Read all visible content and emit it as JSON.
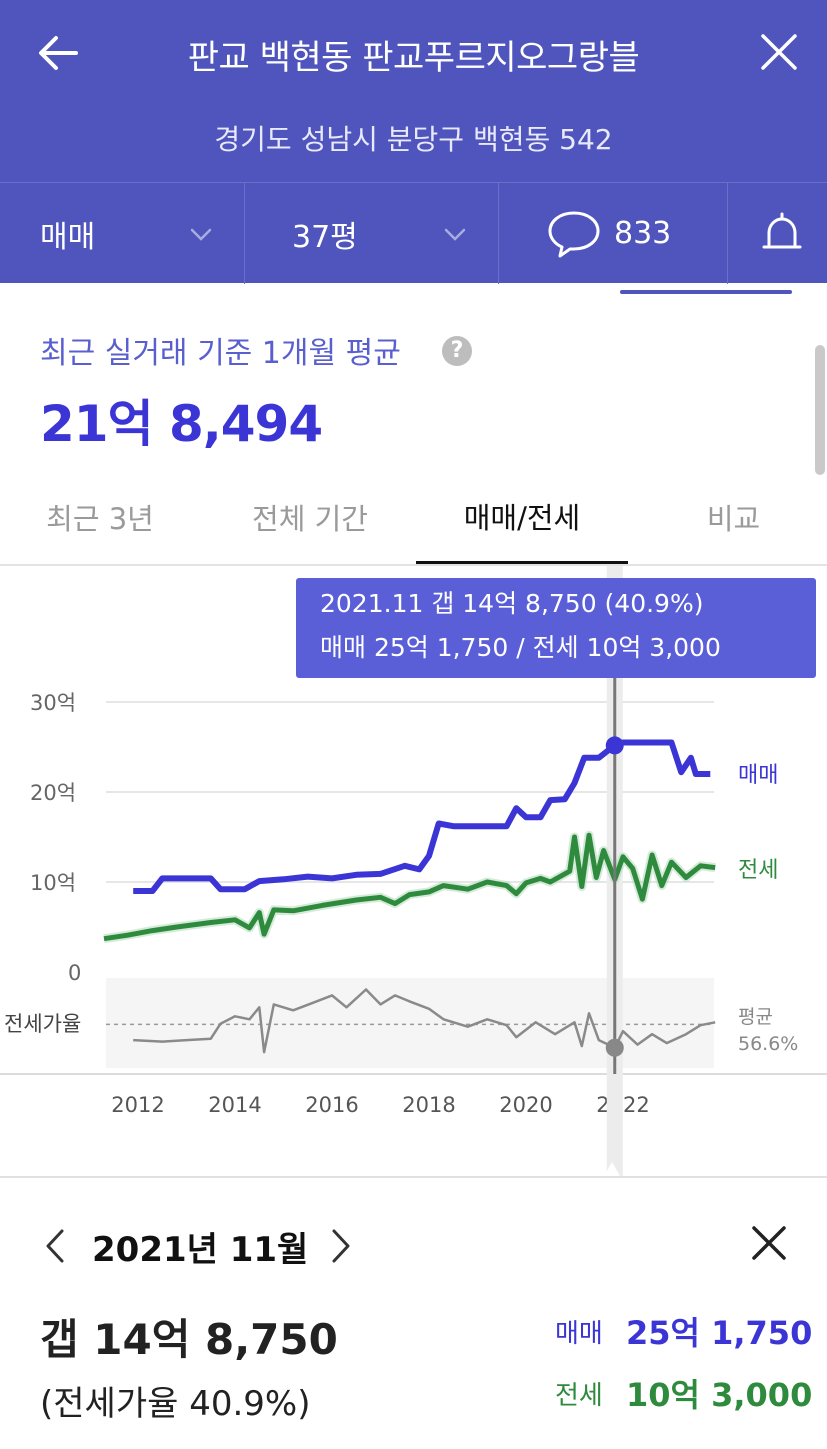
{
  "header": {
    "title": "판교 백현동 판교푸르지오그랑블",
    "address": "경기도 성남시 분당구 백현동 542"
  },
  "filters": {
    "deal_type": "매매",
    "size": "37평",
    "comments": "833"
  },
  "summary": {
    "label": "최근 실거래 기준 1개월 평균",
    "help": "?",
    "price": "21억 8,494"
  },
  "tabs": [
    {
      "label": "최근 3년",
      "active": false
    },
    {
      "label": "전체 기간",
      "active": false
    },
    {
      "label": "매매/전세",
      "active": true
    },
    {
      "label": "비교",
      "active": false
    }
  ],
  "tooltip": {
    "line1": "2021.11  갭 14억 8,750 (40.9%)",
    "line2": "매매 25억 1,750 / 전세 10억 3,000"
  },
  "colors": {
    "brand": "#4f55bd",
    "sale": "#3b35d6",
    "jeonse": "#2e8b3e",
    "ratio": "#8a8a8a"
  },
  "chart_data": {
    "type": "line",
    "x_ticks": [
      "2012",
      "2014",
      "2016",
      "2018",
      "2020",
      "2022"
    ],
    "y_ticks": [
      {
        "v": 30,
        "label": "30억"
      },
      {
        "v": 20,
        "label": "20억"
      },
      {
        "v": 10,
        "label": "10억"
      },
      {
        "v": 0,
        "label": "0"
      }
    ],
    "ylim": [
      0,
      30
    ],
    "grid": true,
    "series": [
      {
        "name": "매매",
        "unit": "억",
        "points": [
          [
            2011.9,
            9.0
          ],
          [
            2012.3,
            9.0
          ],
          [
            2012.5,
            10.4
          ],
          [
            2013.5,
            10.4
          ],
          [
            2013.7,
            9.2
          ],
          [
            2014.2,
            9.2
          ],
          [
            2014.5,
            10.1
          ],
          [
            2015.0,
            10.3
          ],
          [
            2015.5,
            10.6
          ],
          [
            2016.0,
            10.4
          ],
          [
            2016.5,
            10.8
          ],
          [
            2017.0,
            10.9
          ],
          [
            2017.5,
            11.8
          ],
          [
            2017.8,
            11.4
          ],
          [
            2018.0,
            12.9
          ],
          [
            2018.2,
            16.5
          ],
          [
            2018.5,
            16.2
          ],
          [
            2019.0,
            16.2
          ],
          [
            2019.6,
            16.2
          ],
          [
            2019.8,
            18.2
          ],
          [
            2020.0,
            17.2
          ],
          [
            2020.3,
            17.2
          ],
          [
            2020.5,
            19.1
          ],
          [
            2020.8,
            19.2
          ],
          [
            2021.0,
            21.0
          ],
          [
            2021.2,
            23.8
          ],
          [
            2021.5,
            23.8
          ],
          [
            2021.83,
            25.2
          ],
          [
            2022.0,
            25.5
          ],
          [
            2022.5,
            25.5
          ],
          [
            2023.0,
            25.5
          ],
          [
            2023.2,
            22.2
          ],
          [
            2023.4,
            23.8
          ],
          [
            2023.5,
            22.0
          ],
          [
            2023.8,
            22.0
          ]
        ]
      },
      {
        "name": "전세",
        "unit": "억",
        "points": [
          [
            2011.3,
            3.7
          ],
          [
            2011.8,
            4.1
          ],
          [
            2012.3,
            4.6
          ],
          [
            2012.8,
            5.0
          ],
          [
            2013.5,
            5.5
          ],
          [
            2014.0,
            5.8
          ],
          [
            2014.3,
            4.9
          ],
          [
            2014.5,
            6.6
          ],
          [
            2014.6,
            4.2
          ],
          [
            2014.8,
            6.9
          ],
          [
            2015.2,
            6.8
          ],
          [
            2015.8,
            7.4
          ],
          [
            2016.5,
            8.0
          ],
          [
            2017.0,
            8.3
          ],
          [
            2017.3,
            7.6
          ],
          [
            2017.6,
            8.6
          ],
          [
            2018.0,
            8.9
          ],
          [
            2018.3,
            9.6
          ],
          [
            2018.8,
            9.2
          ],
          [
            2019.2,
            10.0
          ],
          [
            2019.6,
            9.6
          ],
          [
            2019.8,
            8.7
          ],
          [
            2020.0,
            9.9
          ],
          [
            2020.3,
            10.4
          ],
          [
            2020.5,
            10.0
          ],
          [
            2020.9,
            11.2
          ],
          [
            2021.0,
            15.0
          ],
          [
            2021.15,
            9.5
          ],
          [
            2021.3,
            15.2
          ],
          [
            2021.45,
            10.5
          ],
          [
            2021.6,
            13.5
          ],
          [
            2021.83,
            10.3
          ],
          [
            2022.0,
            12.8
          ],
          [
            2022.2,
            11.5
          ],
          [
            2022.4,
            8.1
          ],
          [
            2022.6,
            13.0
          ],
          [
            2022.8,
            9.6
          ],
          [
            2023.0,
            12.2
          ],
          [
            2023.3,
            10.5
          ],
          [
            2023.6,
            11.8
          ],
          [
            2023.9,
            11.6
          ]
        ]
      },
      {
        "name": "전세가율",
        "unit": "%",
        "points": [
          [
            2011.9,
            46
          ],
          [
            2012.5,
            45
          ],
          [
            2013.0,
            46
          ],
          [
            2013.5,
            47
          ],
          [
            2013.7,
            57
          ],
          [
            2014.0,
            62
          ],
          [
            2014.3,
            60
          ],
          [
            2014.5,
            68
          ],
          [
            2014.6,
            38
          ],
          [
            2014.8,
            70
          ],
          [
            2015.2,
            66
          ],
          [
            2015.6,
            71
          ],
          [
            2016.0,
            76
          ],
          [
            2016.3,
            68
          ],
          [
            2016.7,
            80
          ],
          [
            2017.0,
            70
          ],
          [
            2017.3,
            76
          ],
          [
            2017.6,
            72
          ],
          [
            2018.0,
            67
          ],
          [
            2018.3,
            60
          ],
          [
            2018.8,
            55
          ],
          [
            2019.2,
            60
          ],
          [
            2019.6,
            56
          ],
          [
            2019.8,
            48
          ],
          [
            2020.2,
            58
          ],
          [
            2020.6,
            50
          ],
          [
            2021.0,
            58
          ],
          [
            2021.15,
            42
          ],
          [
            2021.3,
            64
          ],
          [
            2021.5,
            46
          ],
          [
            2021.83,
            40.9
          ],
          [
            2022.0,
            52
          ],
          [
            2022.3,
            43
          ],
          [
            2022.6,
            50
          ],
          [
            2022.9,
            44
          ],
          [
            2023.3,
            50
          ],
          [
            2023.6,
            56
          ],
          [
            2023.9,
            58
          ]
        ]
      }
    ],
    "selected": {
      "x": 2021.83,
      "sale": 25.175,
      "jeonse": 10.3,
      "ratio_pct": 40.9
    },
    "legend": {
      "sale": "매매",
      "jeonse": "전세",
      "ratio": "전세가율"
    },
    "ratio_avg_label_1": "평균",
    "ratio_avg_label_2": "56.6%",
    "ratio_avg": 56.6
  },
  "detail": {
    "month": "2021년 11월",
    "gap": "갭 14억 8,750",
    "ratio": "(전세가율 40.9%)",
    "sale_label": "매매",
    "sale_value": "25억 1,750",
    "jeonse_label": "전세",
    "jeonse_value": "10억 3,000"
  }
}
